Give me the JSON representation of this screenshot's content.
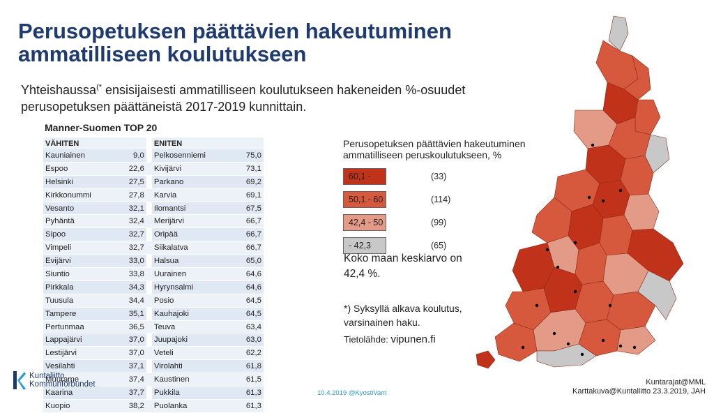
{
  "title": "Perusopetuksen päättävien hakeutuminen ammatilliseen koulutukseen",
  "subtitle_before": "Yhteishaussa",
  "subtitle_sup": "(*",
  "subtitle_after": " ensisijaisesti ammatilliseen koulutukseen hakeneiden %-osuudet perusopetuksen päättäneistä 2017-2019 kunnittain.",
  "top20": {
    "heading": "Manner-Suomen TOP 20",
    "col_least": "VÄHITEN",
    "col_most": "ENITEN",
    "least": [
      [
        "Kauniainen",
        "9,0"
      ],
      [
        "Espoo",
        "22,6"
      ],
      [
        "Helsinki",
        "27,5"
      ],
      [
        "Kirkkonummi",
        "27,8"
      ],
      [
        "Vesanto",
        "32,1"
      ],
      [
        "Pyhäntä",
        "32,4"
      ],
      [
        "Sipoo",
        "32,7"
      ],
      [
        "Vimpeli",
        "32,7"
      ],
      [
        "Evijärvi",
        "33,0"
      ],
      [
        "Siuntio",
        "33,8"
      ],
      [
        "Pirkkala",
        "34,3"
      ],
      [
        "Tuusula",
        "34,4"
      ],
      [
        "Tampere",
        "35,1"
      ],
      [
        "Pertunmaa",
        "36,5"
      ],
      [
        "Lappajärvi",
        "37,0"
      ],
      [
        "Lestijärvi",
        "37,0"
      ],
      [
        "Vesilahti",
        "37,1"
      ],
      [
        "Muurame",
        "37,4"
      ],
      [
        "Kaarina",
        "37,7"
      ],
      [
        "Kuopio",
        "38,2"
      ]
    ],
    "most": [
      [
        "Pelkosenniemi",
        "75,0"
      ],
      [
        "Kivijärvi",
        "73,1"
      ],
      [
        "Parkano",
        "69,2"
      ],
      [
        "Karvia",
        "69,1"
      ],
      [
        "Ilomantsi",
        "67,5"
      ],
      [
        "Merijärvi",
        "66,7"
      ],
      [
        "Oripää",
        "66,7"
      ],
      [
        "Siikalatva",
        "66,7"
      ],
      [
        "Halsua",
        "65,0"
      ],
      [
        "Uurainen",
        "64,6"
      ],
      [
        "Hyrynsalmi",
        "64,6"
      ],
      [
        "Posio",
        "64,5"
      ],
      [
        "Kauhajoki",
        "64,5"
      ],
      [
        "Teuva",
        "63,4"
      ],
      [
        "Juupajoki",
        "63,0"
      ],
      [
        "Veteli",
        "62,2"
      ],
      [
        "Virolahti",
        "61,8"
      ],
      [
        "Kaustinen",
        "61,5"
      ],
      [
        "Pukkila",
        "61,3"
      ],
      [
        "Puolanka",
        "61,3"
      ]
    ]
  },
  "legend": {
    "title": "Perusopetuksen päättävien hakeutuminen ammatilliseen peruskoulutukseen, %",
    "classes": [
      {
        "range": "60,1 -",
        "count": "(33)",
        "color": "#c0321a"
      },
      {
        "range": "50,1 - 60",
        "count": "(114)",
        "color": "#d6593d"
      },
      {
        "range": "42,4 - 50",
        "count": "(99)",
        "color": "#e39b88"
      },
      {
        "range": "- 42,3",
        "count": "(65)",
        "color": "#c8c8c8"
      }
    ]
  },
  "average": "Koko maan keskiarvo on 42,4 %.",
  "footnote_mark": "*)",
  "footnote": " Syksyllä alkava koulutus, varsinainen haku.",
  "source_label": "Tietolähde: ",
  "source_value": "vipunen.fi",
  "logo": {
    "line1": "Kuntaliitto",
    "line2": "Kommunförbundet"
  },
  "date_footer": "10.4.2019 @KyostiVarri",
  "credits": {
    "line1": "Kuntarajat@MML",
    "line2": "Karttakuva@Kuntaliitto 23.3.2019, JAH"
  },
  "map_colors": {
    "high": "#c0321a",
    "mid": "#d6593d",
    "low": "#e39b88",
    "lowest": "#c8c8c8",
    "border": "#8a2a18"
  }
}
